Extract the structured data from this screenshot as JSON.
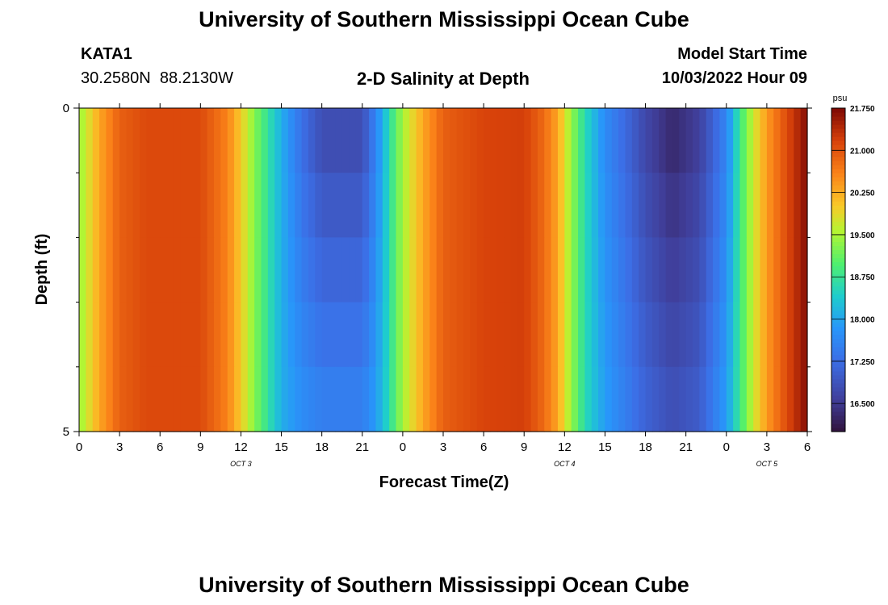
{
  "page_title": "University of Southern Mississippi Ocean Cube",
  "station": {
    "name": "KATA1",
    "coords": "30.2580N  88.2130W"
  },
  "model_start": {
    "label": "Model Start Time",
    "value": "10/03/2022 Hour 09"
  },
  "chart_data": {
    "type": "heatmap",
    "title": "2-D Salinity at Depth",
    "xlabel": "Forecast Time(Z)",
    "ylabel": "Depth (ft)",
    "x_range": [
      0,
      54
    ],
    "x_ticks": [
      0,
      3,
      6,
      9,
      12,
      15,
      18,
      21,
      24,
      27,
      30,
      33,
      36,
      39,
      42,
      45,
      48,
      51,
      54
    ],
    "x_tick_labels": [
      "0",
      "3",
      "6",
      "9",
      "12",
      "15",
      "18",
      "21",
      "0",
      "3",
      "6",
      "9",
      "12",
      "15",
      "18",
      "21",
      "0",
      "3",
      "6"
    ],
    "y_range": [
      0,
      5
    ],
    "y_ticks": [
      0,
      5
    ],
    "y_tick_labels": [
      "0",
      "5"
    ],
    "y_minor_ticks": [
      1,
      2,
      3,
      4
    ],
    "date_labels": [
      {
        "x": 12,
        "text": "OCT 3"
      },
      {
        "x": 36,
        "text": "OCT 4"
      },
      {
        "x": 51,
        "text": "OCT 5"
      }
    ],
    "colorbar": {
      "units": "psu",
      "min": 16.0,
      "max": 21.75,
      "tick_values": [
        16.5,
        17.25,
        18.0,
        18.75,
        19.5,
        20.25,
        21.0,
        21.75
      ],
      "tick_labels": [
        "16.500",
        "17.250",
        "18.000",
        "18.750",
        "19.500",
        "20.250",
        "21.000",
        "21.750"
      ]
    },
    "depth_rows": [
      0,
      1,
      2,
      3,
      4
    ],
    "series": [
      {
        "t": 0.0,
        "surface": 19.4,
        "bottom": 19.4
      },
      {
        "t": 1.5,
        "surface": 20.3,
        "bottom": 20.3
      },
      {
        "t": 3.0,
        "surface": 20.9,
        "bottom": 20.9
      },
      {
        "t": 5.0,
        "surface": 21.1,
        "bottom": 21.1
      },
      {
        "t": 9.0,
        "surface": 21.1,
        "bottom": 21.1
      },
      {
        "t": 11.0,
        "surface": 20.6,
        "bottom": 20.6
      },
      {
        "t": 12.0,
        "surface": 20.0,
        "bottom": 20.0
      },
      {
        "t": 13.0,
        "surface": 19.3,
        "bottom": 19.3
      },
      {
        "t": 14.0,
        "surface": 18.7,
        "bottom": 18.7
      },
      {
        "t": 15.0,
        "surface": 18.1,
        "bottom": 18.1
      },
      {
        "t": 16.5,
        "surface": 17.3,
        "bottom": 17.7
      },
      {
        "t": 18.0,
        "surface": 16.8,
        "bottom": 17.5
      },
      {
        "t": 21.0,
        "surface": 16.8,
        "bottom": 17.5
      },
      {
        "t": 22.0,
        "surface": 17.6,
        "bottom": 17.9
      },
      {
        "t": 23.0,
        "surface": 18.6,
        "bottom": 18.6
      },
      {
        "t": 24.0,
        "surface": 19.5,
        "bottom": 19.5
      },
      {
        "t": 25.5,
        "surface": 20.3,
        "bottom": 20.3
      },
      {
        "t": 27.0,
        "surface": 20.9,
        "bottom": 20.9
      },
      {
        "t": 30.0,
        "surface": 21.15,
        "bottom": 21.15
      },
      {
        "t": 33.0,
        "surface": 21.2,
        "bottom": 21.2
      },
      {
        "t": 34.5,
        "surface": 20.8,
        "bottom": 20.8
      },
      {
        "t": 35.5,
        "surface": 20.3,
        "bottom": 20.3
      },
      {
        "t": 36.5,
        "surface": 19.4,
        "bottom": 19.4
      },
      {
        "t": 37.5,
        "surface": 18.6,
        "bottom": 18.6
      },
      {
        "t": 39.0,
        "surface": 17.7,
        "bottom": 17.9
      },
      {
        "t": 42.0,
        "surface": 16.7,
        "bottom": 17.1
      },
      {
        "t": 44.0,
        "surface": 16.3,
        "bottom": 16.8
      },
      {
        "t": 46.0,
        "surface": 16.6,
        "bottom": 17.0
      },
      {
        "t": 48.0,
        "surface": 17.6,
        "bottom": 17.9
      },
      {
        "t": 49.0,
        "surface": 18.8,
        "bottom": 18.8
      },
      {
        "t": 50.0,
        "surface": 19.7,
        "bottom": 19.7
      },
      {
        "t": 51.0,
        "surface": 20.4,
        "bottom": 20.4
      },
      {
        "t": 52.5,
        "surface": 21.1,
        "bottom": 21.1
      },
      {
        "t": 54.0,
        "surface": 21.7,
        "bottom": 21.7
      }
    ]
  }
}
